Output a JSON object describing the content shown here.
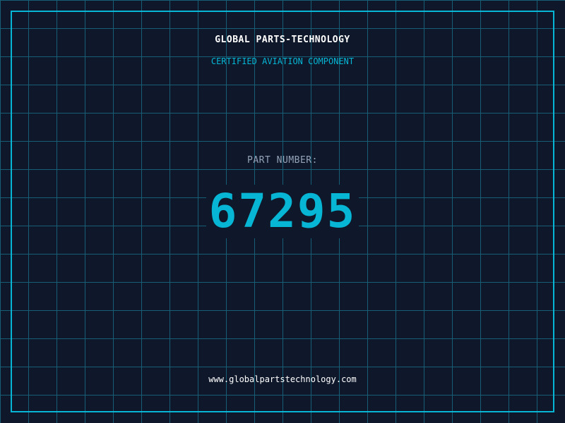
{
  "header": {
    "company": "GLOBAL PARTS-TECHNOLOGY",
    "subtitle": "CERTIFIED AVIATION COMPONENT"
  },
  "part": {
    "label": "PART NUMBER:",
    "number": "67295"
  },
  "footer": {
    "url": "www.globalpartstechnology.com"
  },
  "colors": {
    "background": "#0f172a",
    "accent": "#06b6d4",
    "grid": "#155e75"
  }
}
